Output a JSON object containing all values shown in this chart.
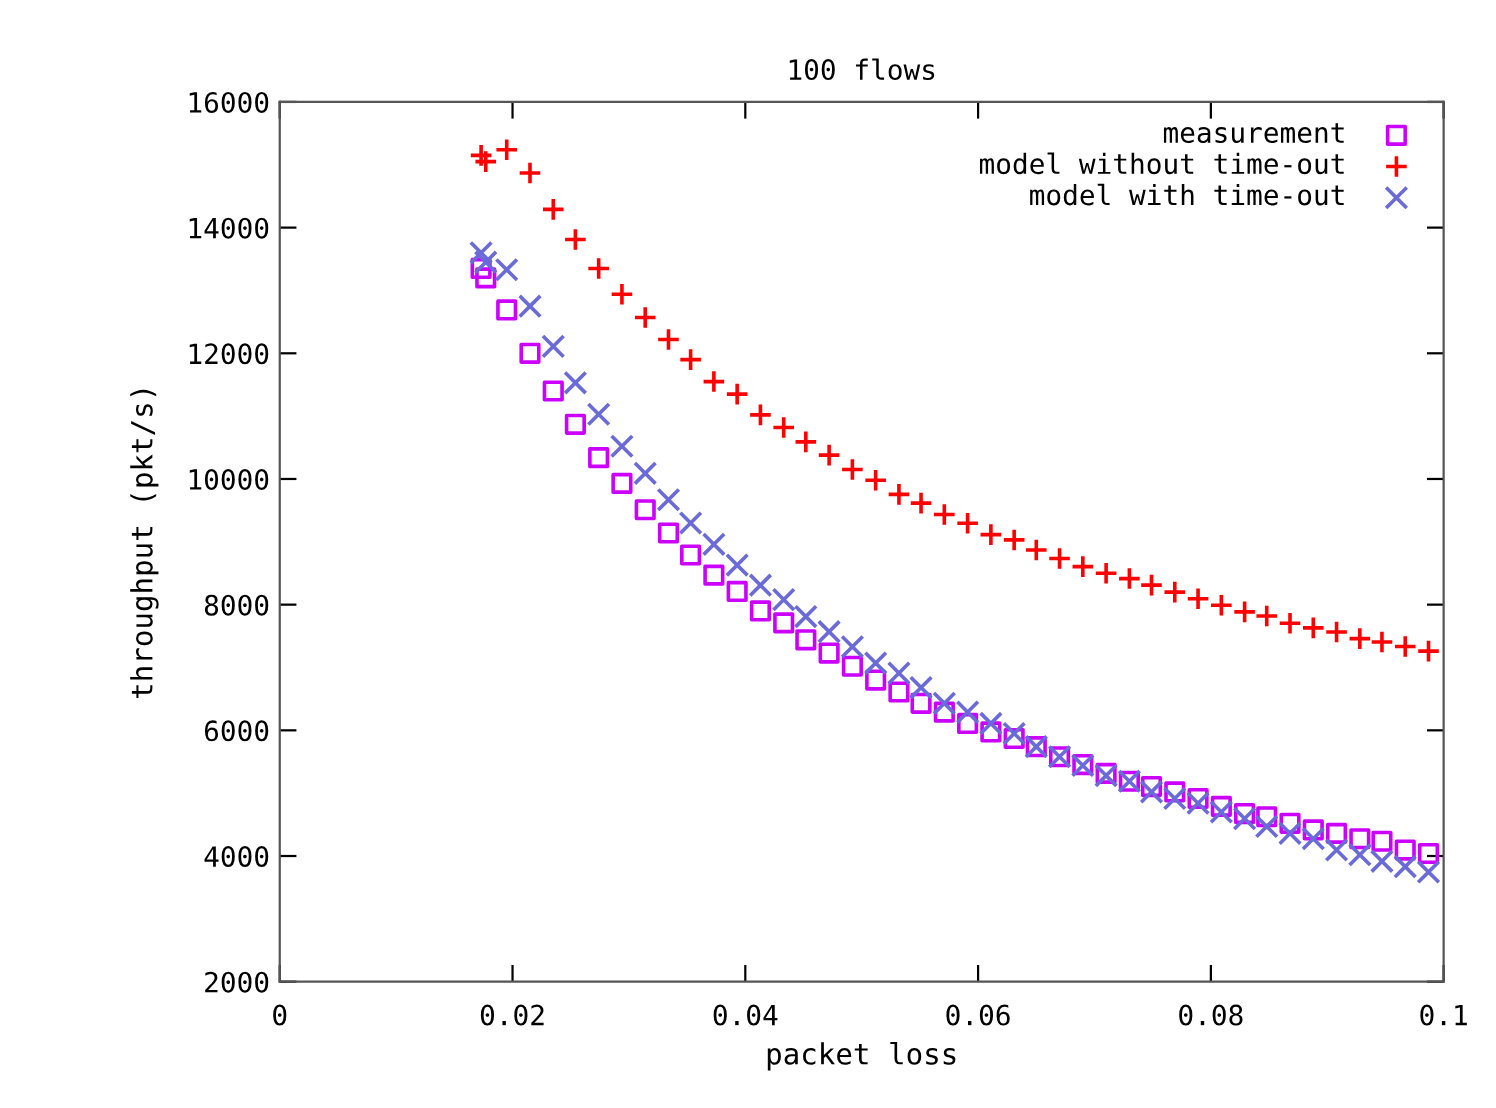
{
  "chart_data": {
    "type": "scatter",
    "title": "100 flows",
    "xlabel": "packet loss",
    "ylabel": "throughput (pkt/s)",
    "x": [
      0.0173,
      0.0177,
      0.0195,
      0.0215,
      0.0235,
      0.0254,
      0.0274,
      0.0294,
      0.0314,
      0.0334,
      0.0353,
      0.0373,
      0.0393,
      0.0413,
      0.0433,
      0.0452,
      0.0472,
      0.0492,
      0.0512,
      0.0532,
      0.0551,
      0.0571,
      0.0591,
      0.0611,
      0.0631,
      0.065,
      0.067,
      0.069,
      0.071,
      0.073,
      0.0749,
      0.0769,
      0.0789,
      0.0809,
      0.0829,
      0.0848,
      0.0868,
      0.0888,
      0.0908,
      0.0928,
      0.0947,
      0.0967,
      0.0987
    ],
    "series": [
      {
        "name": "measurement",
        "color": "#cc00ff",
        "marker": "square",
        "values": [
          13350,
          13200,
          12690,
          12000,
          11400,
          10870,
          10340,
          9930,
          9510,
          9140,
          8790,
          8470,
          8210,
          7900,
          7710,
          7440,
          7230,
          7020,
          6800,
          6610,
          6430,
          6290,
          6110,
          5975,
          5870,
          5740,
          5580,
          5455,
          5315,
          5190,
          5105,
          5020,
          4915,
          4790,
          4675,
          4625,
          4520,
          4415,
          4360,
          4275,
          4235,
          4095,
          4040
        ]
      },
      {
        "name": "model without time-out",
        "color": "#ff0000",
        "marker": "plus",
        "values": [
          15150,
          15050,
          15240,
          14870,
          14290,
          13810,
          13350,
          12940,
          12570,
          12220,
          11900,
          11550,
          11350,
          11020,
          10820,
          10590,
          10380,
          10150,
          9980,
          9755,
          9615,
          9435,
          9295,
          9115,
          9030,
          8870,
          8735,
          8605,
          8500,
          8415,
          8310,
          8200,
          8095,
          7990,
          7885,
          7820,
          7705,
          7630,
          7565,
          7460,
          7405,
          7335,
          7260
        ]
      },
      {
        "name": "model with time-out",
        "color": "#6a6ad8",
        "marker": "cross",
        "values": [
          13600,
          13450,
          13330,
          12750,
          12110,
          11530,
          11030,
          10520,
          10090,
          9670,
          9300,
          8960,
          8630,
          8310,
          8080,
          7810,
          7570,
          7330,
          7070,
          6910,
          6680,
          6430,
          6290,
          6110,
          5950,
          5740,
          5580,
          5440,
          5280,
          5190,
          5020,
          4915,
          4840,
          4700,
          4595,
          4470,
          4360,
          4275,
          4095,
          4020,
          3915,
          3830,
          3745
        ]
      }
    ],
    "xlim": [
      0,
      0.1
    ],
    "xticks": [
      0,
      0.02,
      0.04,
      0.06,
      0.08,
      0.1
    ],
    "ylim": [
      2000,
      16000
    ],
    "yticks": [
      2000,
      4000,
      6000,
      8000,
      10000,
      12000,
      14000,
      16000
    ],
    "grid": false,
    "legend": "top right"
  }
}
